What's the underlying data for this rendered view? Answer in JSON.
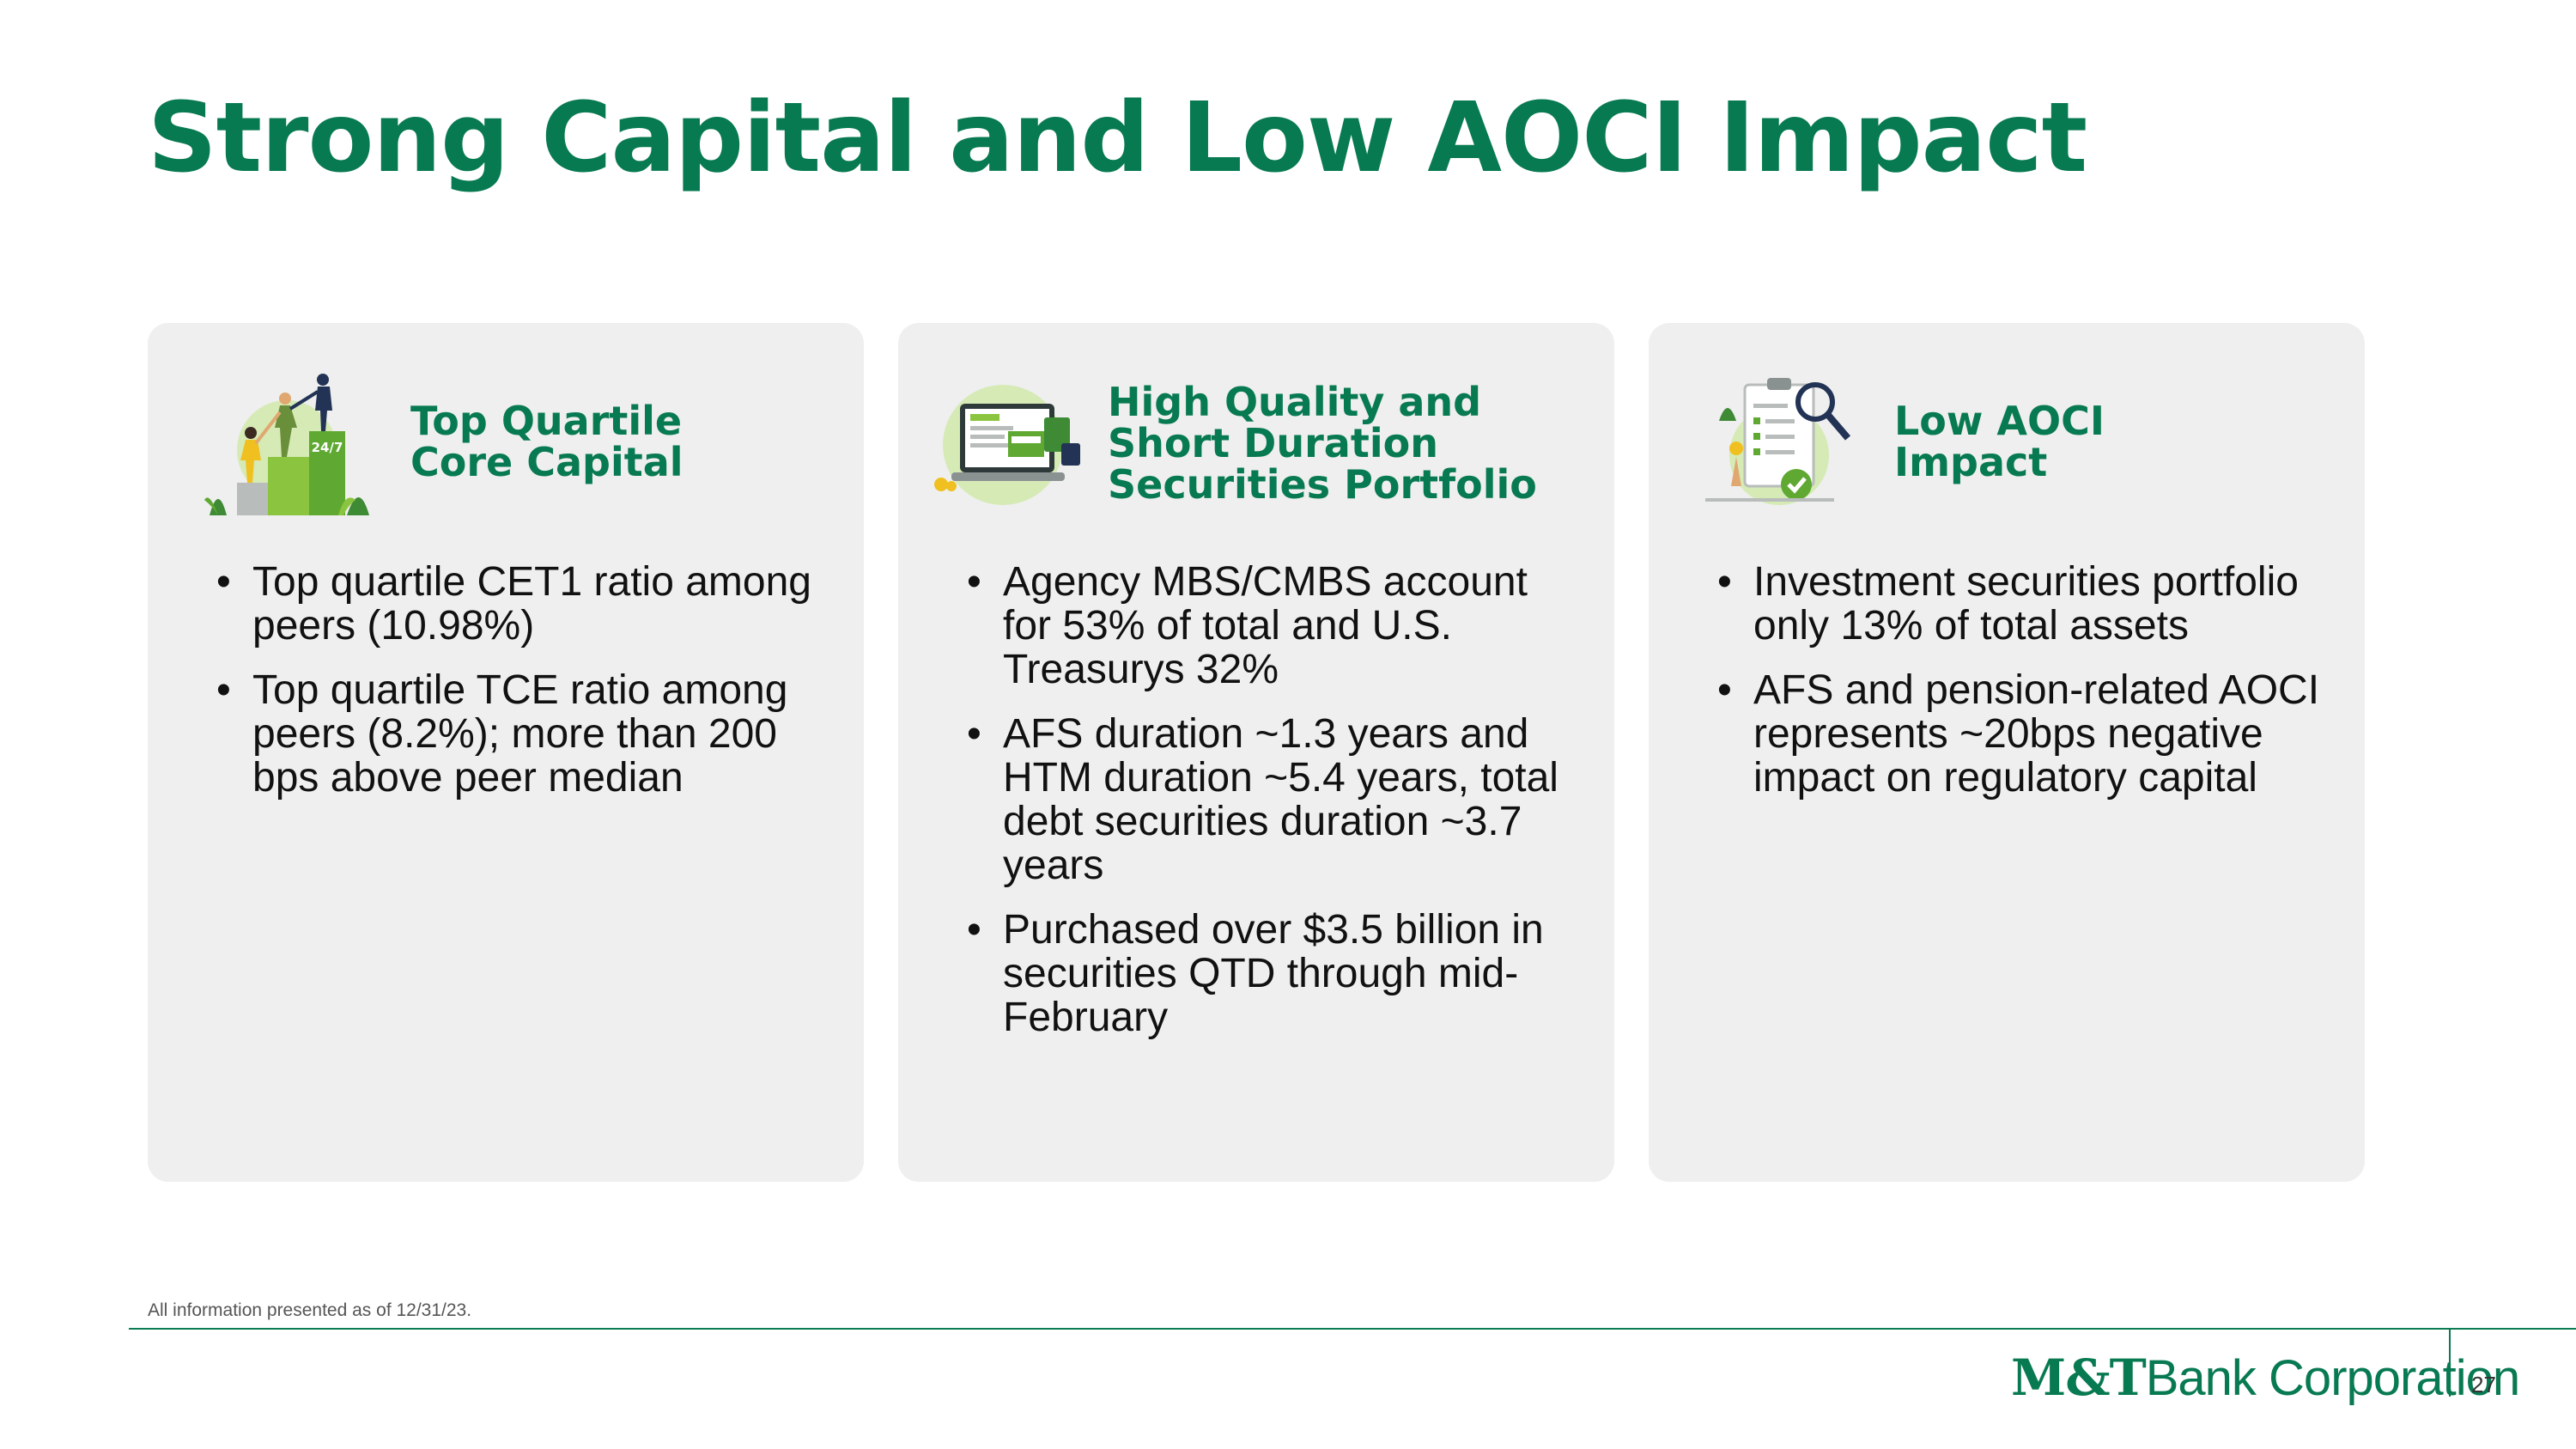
{
  "title": "Strong Capital and Low AOCI Impact",
  "cards": [
    {
      "heading_lines": [
        "Top Quartile",
        "Core Capital"
      ],
      "icon": "people-climbing-podium-icon",
      "icon_label": "24/7",
      "bullets": [
        "Top quartile CET1 ratio among peers (10.98%)",
        "Top quartile TCE ratio among peers (8.2%); more than 200 bps above peer median"
      ]
    },
    {
      "heading_lines": [
        "High Quality and",
        "Short Duration",
        "Securities Portfolio"
      ],
      "icon": "computer-portfolio-icon",
      "bullets": [
        "Agency MBS/CMBS account for 53% of total and U.S. Treasurys 32%",
        "AFS duration ~1.3 years and HTM duration ~5.4 years, total debt securities duration ~3.7 years",
        "Purchased over $3.5 billion in securities QTD through mid-February"
      ]
    },
    {
      "heading_lines": [
        "Low AOCI",
        "Impact"
      ],
      "icon": "checklist-magnifier-icon",
      "bullets": [
        "Investment securities portfolio only 13% of total assets",
        "AFS and pension-related AOCI represents ~20bps negative impact on regulatory capital"
      ]
    }
  ],
  "footnote": "All information presented as of 12/31/23.",
  "logo": {
    "brand": "M&T",
    "suffix": "Bank Corporation"
  },
  "page_number": "27",
  "colors": {
    "accent": "#087a51",
    "card_bg": "#eeefee",
    "icon_green": "#7ab93d",
    "icon_light": "#d6eab6"
  }
}
